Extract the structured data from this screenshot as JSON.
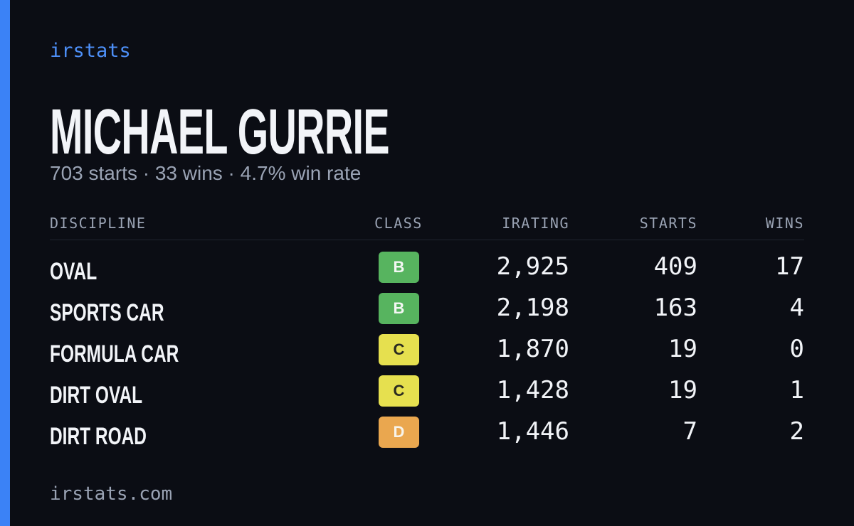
{
  "brand": "irstats",
  "profile": {
    "name": "MICHAEL GURRIE",
    "summary": "703 starts · 33 wins · 4.7% win rate"
  },
  "table": {
    "headers": [
      "DISCIPLINE",
      "CLASS",
      "IRATING",
      "STARTS",
      "WINS"
    ],
    "rows": [
      [
        "OVAL",
        "B",
        "2,925",
        "409",
        "17"
      ],
      [
        "SPORTS CAR",
        "B",
        "2,198",
        "163",
        "4"
      ],
      [
        "FORMULA CAR",
        "C",
        "1,870",
        "19",
        "0"
      ],
      [
        "DIRT OVAL",
        "C",
        "1,428",
        "19",
        "1"
      ],
      [
        "DIRT ROAD",
        "D",
        "1,446",
        "7",
        "2"
      ]
    ]
  },
  "class_colors": {
    "B": {
      "background": "#57b45f",
      "text": "#f4f7f4"
    },
    "C": {
      "background": "#e6e04f",
      "text": "#2a2a20"
    },
    "D": {
      "background": "#eaa74f",
      "text": "#f8f4ea"
    }
  },
  "footer": "irstats.com"
}
